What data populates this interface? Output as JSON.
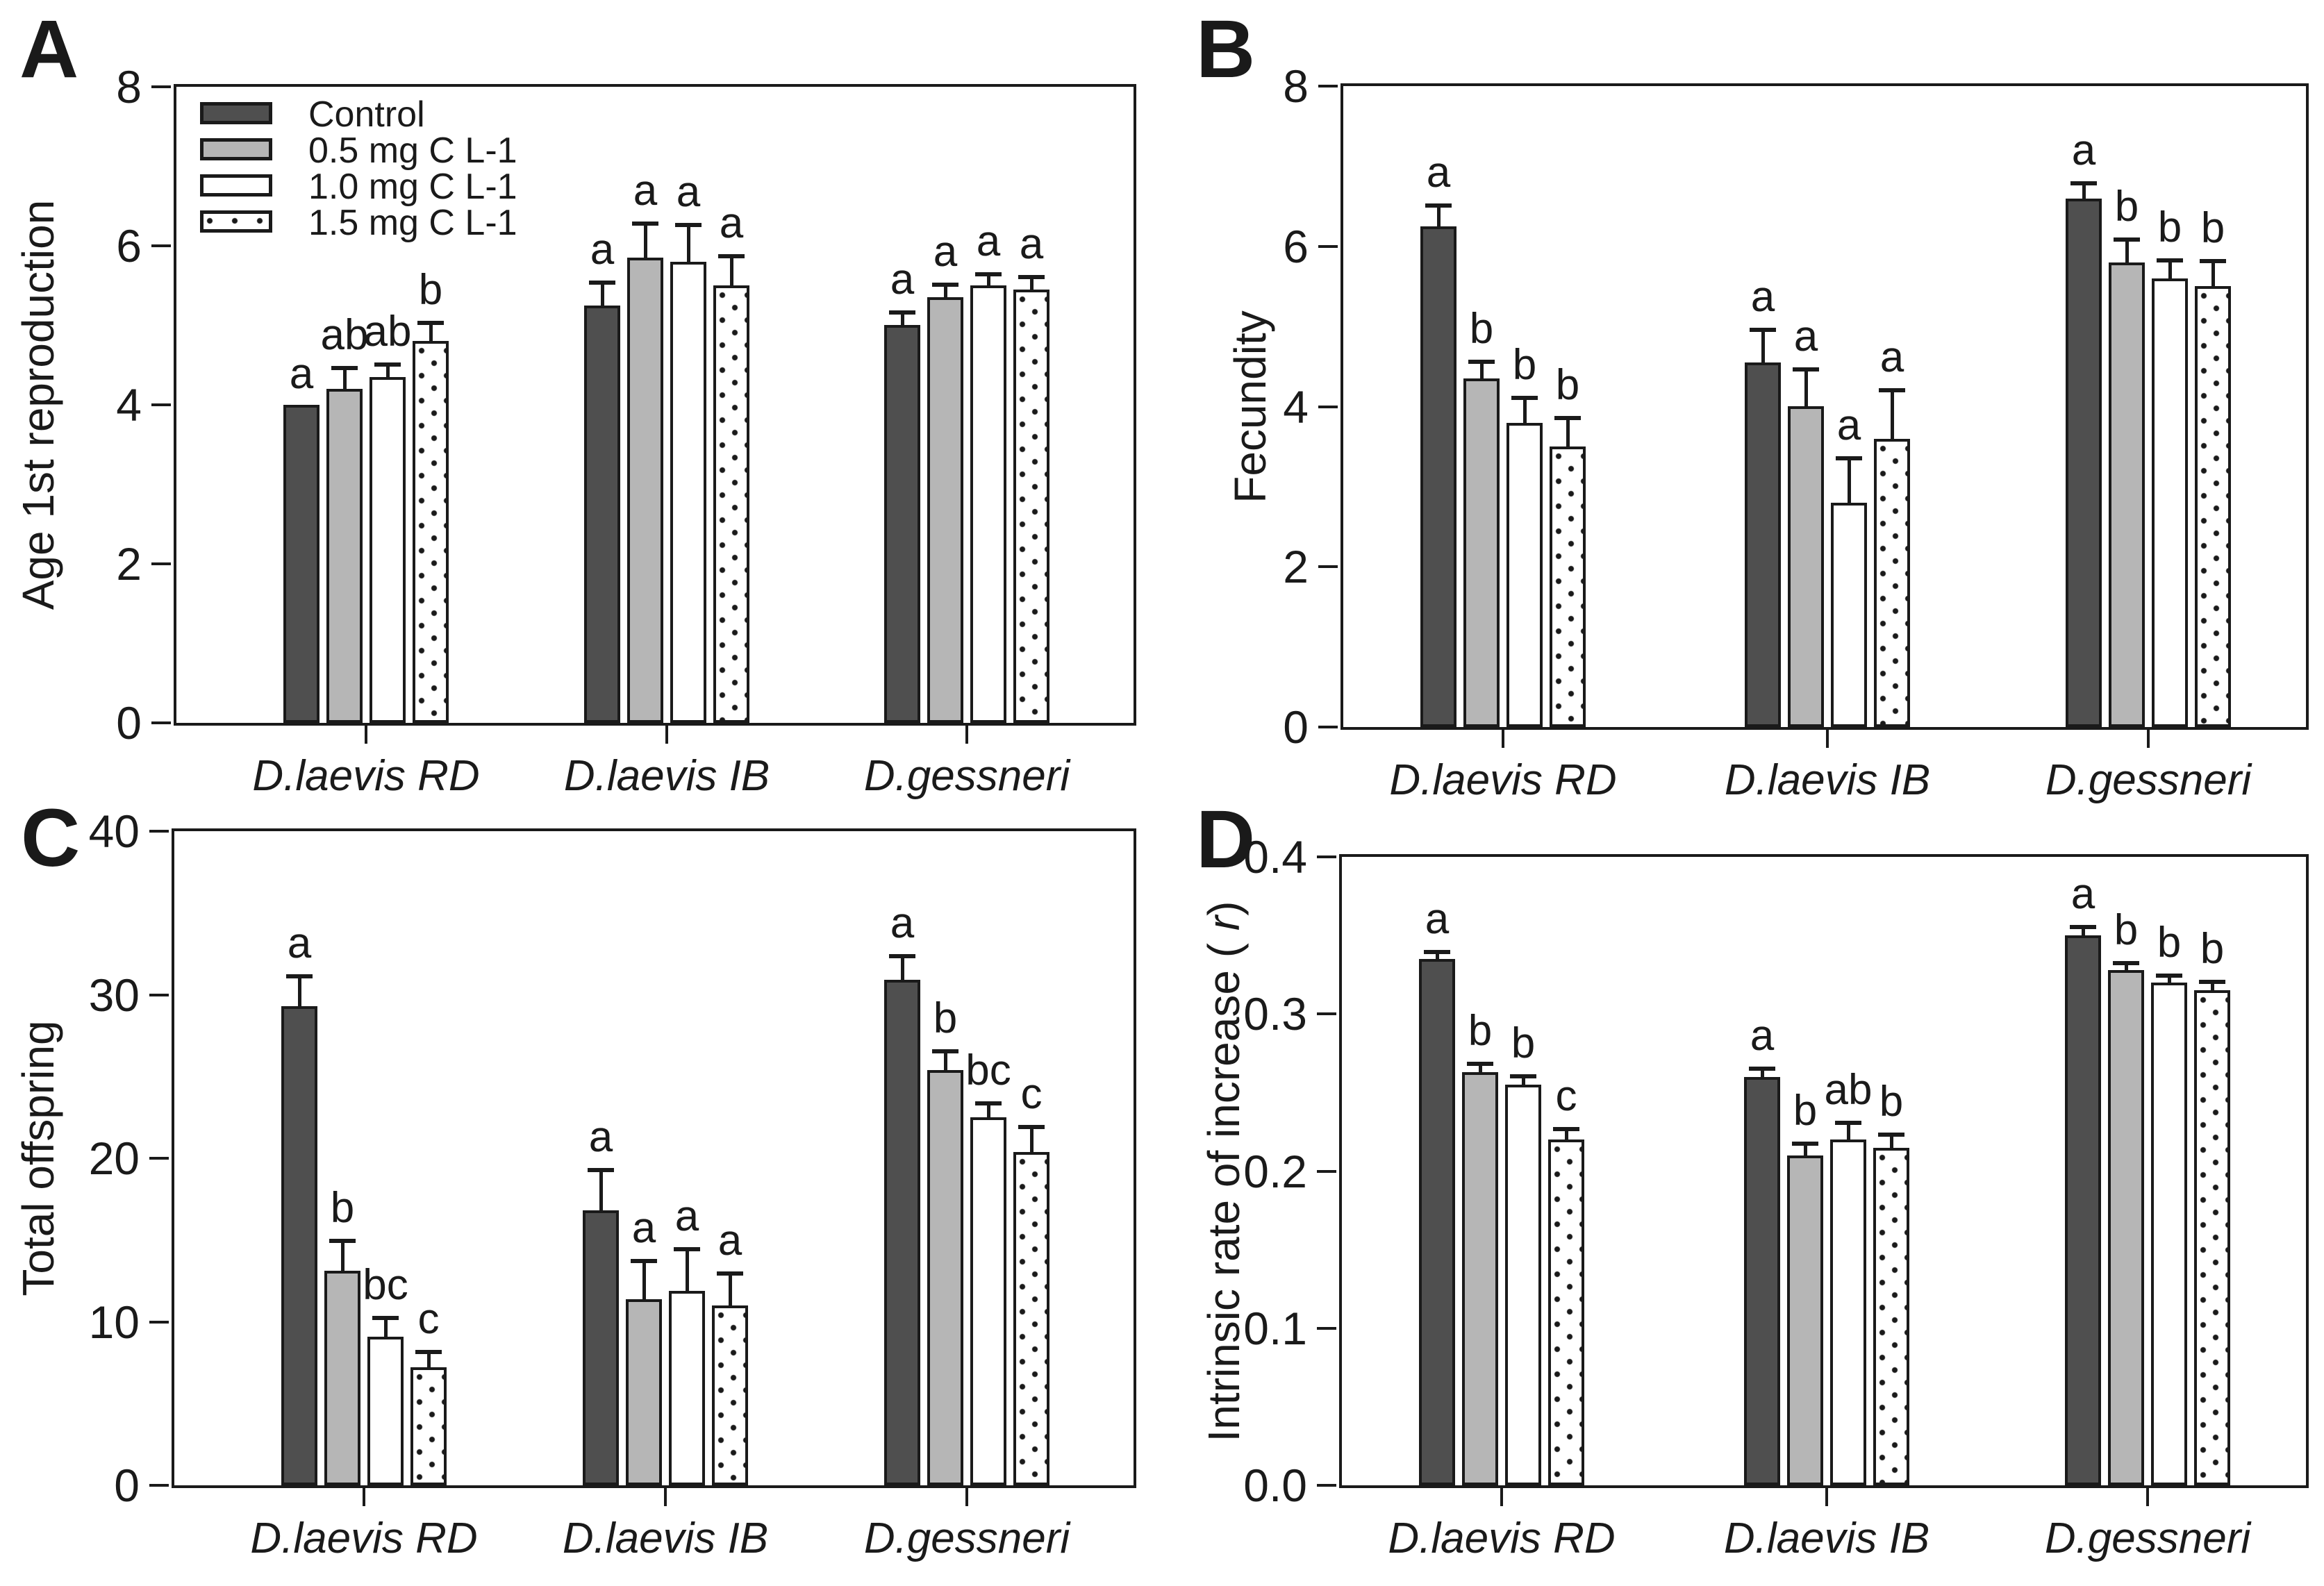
{
  "colors": {
    "bar_outline": "#1a1a1a",
    "control_fill": "#4f4f4f",
    "low_fill": "#b6b6b6",
    "mid_fill": "#ffffff",
    "high_fill": "dotted-white"
  },
  "legend": {
    "items": [
      {
        "label": "Control",
        "style": "s-control"
      },
      {
        "label": "0.5 mg C L-1",
        "style": "s-low"
      },
      {
        "label": "1.0 mg C L-1",
        "style": "s-mid"
      },
      {
        "label": "1.5 mg C L-1",
        "style": "s-dots"
      }
    ]
  },
  "chart_data": [
    {
      "type": "bar",
      "panel": "A",
      "ylabel": "Age 1st reproduction",
      "xlabel": "",
      "ylim": [
        0,
        8
      ],
      "yticks": [
        "0",
        "2",
        "4",
        "6",
        "8"
      ],
      "grid": false,
      "legend_position": "top-left-inside",
      "categories": [
        "D.laevis RD",
        "D.laevis IB",
        "D.gessneri"
      ],
      "series": [
        {
          "name": "Control",
          "values": [
            4.0,
            5.25,
            5.0
          ],
          "errors": [
            0,
            0.28,
            0.15
          ],
          "letters": [
            "a",
            "a",
            "a"
          ]
        },
        {
          "name": "0.5 mg C L-1",
          "values": [
            4.2,
            5.85,
            5.35
          ],
          "errors": [
            0.25,
            0.42,
            0.15
          ],
          "letters": [
            "ab",
            "a",
            "a"
          ]
        },
        {
          "name": "1.0 mg C L-1",
          "values": [
            4.35,
            5.8,
            5.5
          ],
          "errors": [
            0.15,
            0.45,
            0.13
          ],
          "letters": [
            "ab",
            "a",
            "a"
          ]
        },
        {
          "name": "1.5 mg C L-1",
          "values": [
            4.8,
            5.5,
            5.45
          ],
          "errors": [
            0.22,
            0.36,
            0.15
          ],
          "letters": [
            "b",
            "a",
            "a"
          ]
        }
      ]
    },
    {
      "type": "bar",
      "panel": "B",
      "ylabel": "Fecundity",
      "xlabel": "",
      "ylim": [
        0,
        8
      ],
      "yticks": [
        "0",
        "2",
        "4",
        "6",
        "8"
      ],
      "grid": false,
      "categories": [
        "D.laevis RD",
        "D.laevis IB",
        "D.gessneri"
      ],
      "series": [
        {
          "name": "Control",
          "values": [
            6.25,
            4.55,
            6.6
          ],
          "errors": [
            0.25,
            0.4,
            0.18
          ],
          "letters": [
            "a",
            "a",
            "a"
          ]
        },
        {
          "name": "0.5 mg C L-1",
          "values": [
            4.35,
            4.0,
            5.8
          ],
          "errors": [
            0.2,
            0.45,
            0.28
          ],
          "letters": [
            "b",
            "a",
            "b"
          ]
        },
        {
          "name": "1.0 mg C L-1",
          "values": [
            3.8,
            2.8,
            5.6
          ],
          "errors": [
            0.3,
            0.55,
            0.22
          ],
          "letters": [
            "b",
            "a",
            "b"
          ]
        },
        {
          "name": "1.5 mg C L-1",
          "values": [
            3.5,
            3.6,
            5.5
          ],
          "errors": [
            0.35,
            0.6,
            0.3
          ],
          "letters": [
            "b",
            "a",
            "b"
          ]
        }
      ]
    },
    {
      "type": "bar",
      "panel": "C",
      "ylabel": "Total offspring",
      "xlabel": "",
      "ylim": [
        0,
        40
      ],
      "yticks": [
        "0",
        "10",
        "20",
        "30",
        "40"
      ],
      "grid": false,
      "categories": [
        "D.laevis RD",
        "D.laevis IB",
        "D.gessneri"
      ],
      "series": [
        {
          "name": "Control",
          "values": [
            29.3,
            16.8,
            30.9
          ],
          "errors": [
            1.8,
            2.4,
            1.4
          ],
          "letters": [
            "a",
            "a",
            "a"
          ]
        },
        {
          "name": "0.5 mg C L-1",
          "values": [
            13.1,
            11.4,
            25.4
          ],
          "errors": [
            1.8,
            2.3,
            1.1
          ],
          "letters": [
            "b",
            "a",
            "b"
          ]
        },
        {
          "name": "1.0 mg C L-1",
          "values": [
            9.1,
            11.9,
            22.5
          ],
          "errors": [
            1.1,
            2.5,
            0.8
          ],
          "letters": [
            "bc",
            "a",
            "bc"
          ]
        },
        {
          "name": "1.5 mg C L-1",
          "values": [
            7.2,
            11.0,
            20.4
          ],
          "errors": [
            0.9,
            1.9,
            1.5
          ],
          "letters": [
            "c",
            "a",
            "c"
          ]
        }
      ]
    },
    {
      "type": "bar",
      "panel": "D",
      "ylabel": "Intrinsic rate of increase (r)",
      "xlabel": "",
      "ylim": [
        0,
        0.4
      ],
      "yticks": [
        "0.0",
        "0.1",
        "0.2",
        "0.3",
        "0.4"
      ],
      "grid": false,
      "categories": [
        "D.laevis RD",
        "D.laevis IB",
        "D.gessneri"
      ],
      "series": [
        {
          "name": "Control",
          "values": [
            0.335,
            0.26,
            0.35
          ],
          "errors": [
            0.004,
            0.005,
            0.005
          ],
          "letters": [
            "a",
            "a",
            "a"
          ]
        },
        {
          "name": "0.5 mg C L-1",
          "values": [
            0.263,
            0.21,
            0.328
          ],
          "errors": [
            0.005,
            0.007,
            0.004
          ],
          "letters": [
            "b",
            "b",
            "b"
          ]
        },
        {
          "name": "1.0 mg C L-1",
          "values": [
            0.255,
            0.22,
            0.32
          ],
          "errors": [
            0.005,
            0.01,
            0.004
          ],
          "letters": [
            "b",
            "ab",
            "b"
          ]
        },
        {
          "name": "1.5 mg C L-1",
          "values": [
            0.22,
            0.215,
            0.315
          ],
          "errors": [
            0.006,
            0.008,
            0.005
          ],
          "letters": [
            "c",
            "b",
            "b"
          ]
        }
      ]
    }
  ]
}
